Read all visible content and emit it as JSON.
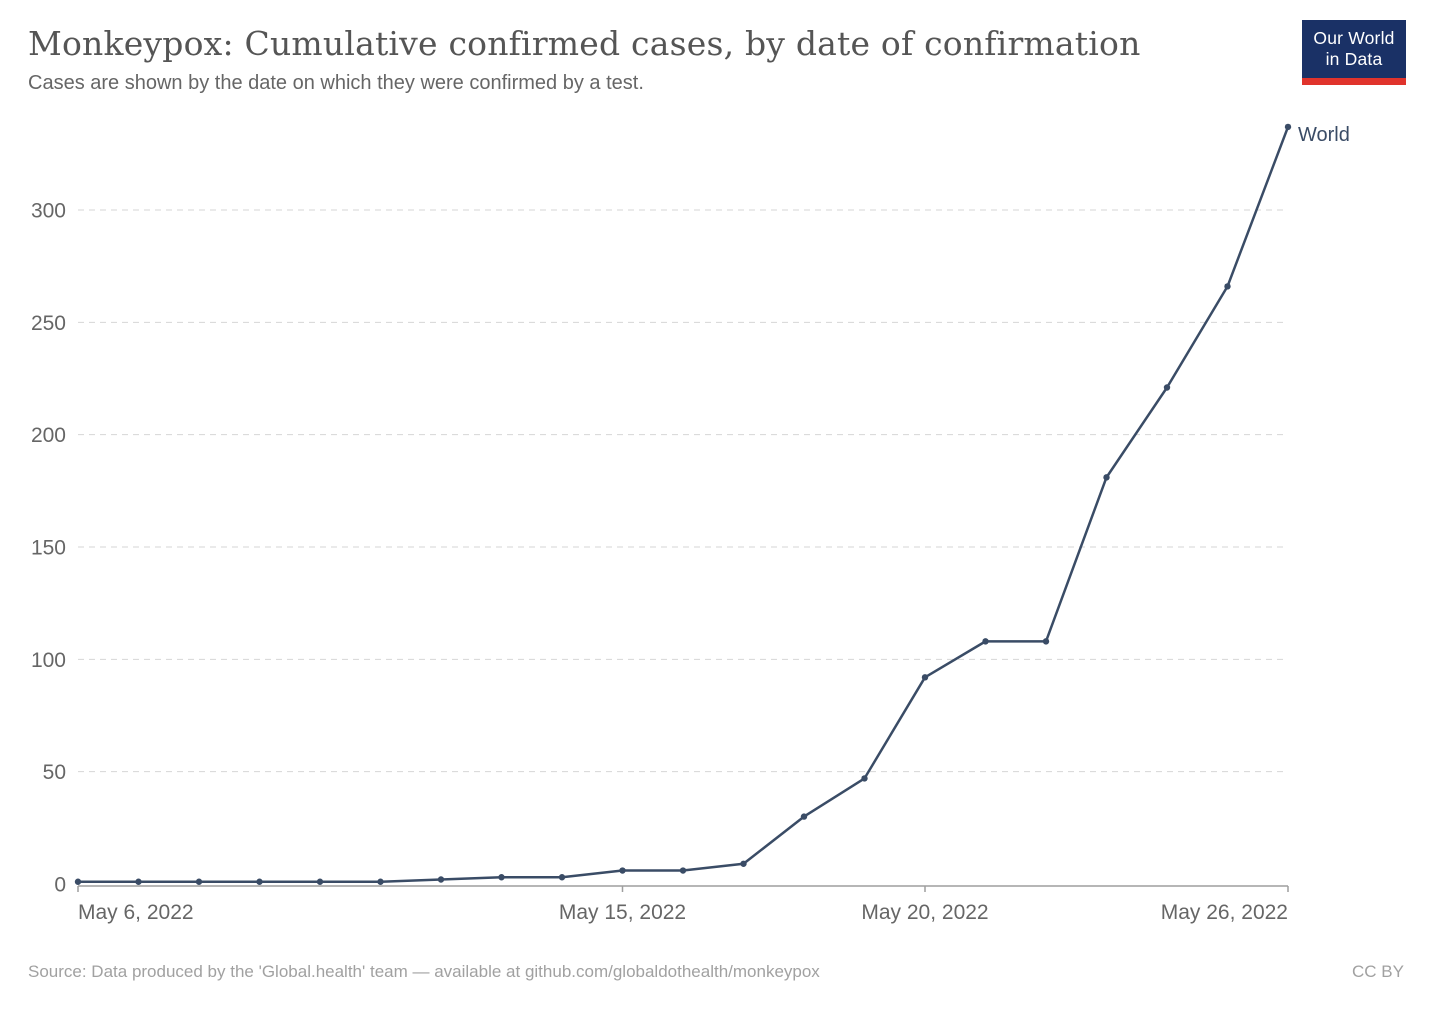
{
  "header": {
    "title": "Monkeypox: Cumulative confirmed cases, by date of confirmation",
    "subtitle": "Cases are shown by the date on which they were confirmed by a test.",
    "logo": {
      "line1": "Our World",
      "line2": "in Data",
      "bg_color": "#1a3166",
      "accent_color": "#e0332c"
    }
  },
  "chart_data": {
    "type": "line",
    "title": "Monkeypox: Cumulative confirmed cases, by date of confirmation",
    "subtitle": "Cases are shown by the date on which they were confirmed by a test.",
    "x_dates": [
      "2022-05-06",
      "2022-05-07",
      "2022-05-08",
      "2022-05-09",
      "2022-05-10",
      "2022-05-11",
      "2022-05-12",
      "2022-05-13",
      "2022-05-14",
      "2022-05-15",
      "2022-05-16",
      "2022-05-17",
      "2022-05-18",
      "2022-05-19",
      "2022-05-20",
      "2022-05-21",
      "2022-05-22",
      "2022-05-23",
      "2022-05-24",
      "2022-05-25",
      "2022-05-26"
    ],
    "series": [
      {
        "name": "World",
        "color": "#3a4c66",
        "values": [
          1,
          1,
          1,
          1,
          1,
          1,
          2,
          3,
          3,
          6,
          6,
          9,
          30,
          47,
          92,
          108,
          108,
          181,
          221,
          266,
          337
        ]
      }
    ],
    "ylim": [
      0,
      340
    ],
    "y_ticks": [
      0,
      50,
      100,
      150,
      200,
      250,
      300
    ],
    "x_ticks": [
      {
        "i": 0,
        "label": "May 6, 2022",
        "anchor": "start"
      },
      {
        "i": 9,
        "label": "May 15, 2022",
        "anchor": "middle"
      },
      {
        "i": 14,
        "label": "May 20, 2022",
        "anchor": "middle"
      },
      {
        "i": 20,
        "label": "May 26, 2022",
        "anchor": "end"
      }
    ],
    "grid": "horizontal-dashed",
    "legend_position": "end-of-line-label",
    "line_color": "#3a4c66",
    "gridline_color": "#d6d6d6",
    "axis_label_color": "#666666"
  },
  "footer": {
    "source": "Source: Data produced by the 'Global.health' team — available at github.com/globaldothealth/monkeypox",
    "license": "CC BY"
  }
}
